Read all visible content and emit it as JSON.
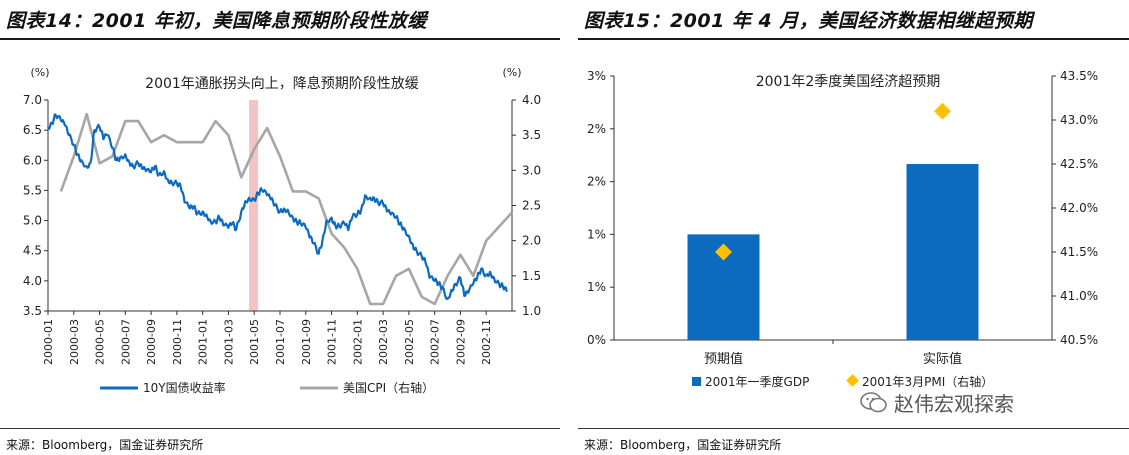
{
  "left": {
    "figure_title": "图表14：2001 年初，美国降息预期阶段性放缓",
    "source": "来源：Bloomberg，国金证券研究所"
  },
  "right": {
    "figure_title": "图表15：2001 年 4 月，美国经济数据相继超预期",
    "source": "来源：Bloomberg，国金证券研究所"
  },
  "watermark": "赵伟宏观探索",
  "colors": {
    "blue": "#0c6bbf",
    "gray": "#a6a6a6",
    "shade": "#f2c4c4",
    "diamond": "#ffc000"
  },
  "chart_data": [
    {
      "type": "line",
      "title": "2001年通胀拐头向上，降息预期阶段性放缓",
      "left_unit": "(%)",
      "right_unit": "(%)",
      "ylim_left": [
        3.5,
        7.0
      ],
      "ylim_right": [
        1.0,
        4.0
      ],
      "yticks_left": [
        "3.5",
        "4.0",
        "4.5",
        "5.0",
        "5.5",
        "6.0",
        "6.5",
        "7.0"
      ],
      "yticks_right": [
        "1.0",
        "1.5",
        "2.0",
        "2.5",
        "3.0",
        "3.5",
        "4.0"
      ],
      "x_tick_labels": [
        "2000-01",
        "2000-03",
        "2000-05",
        "2000-07",
        "2000-09",
        "2000-11",
        "2001-01",
        "2001-03",
        "2001-05",
        "2001-07",
        "2001-09",
        "2001-11",
        "2002-01",
        "2002-03",
        "2002-05",
        "2002-07",
        "2002-09",
        "2002-11"
      ],
      "highlight_range": [
        15.6,
        16.3
      ],
      "series": [
        {
          "name": "10Y国债收益率",
          "axis": "left",
          "x": [
            0,
            0.3,
            0.6,
            1.0,
            1.3,
            1.6,
            2.0,
            2.3,
            2.6,
            3.0,
            3.3,
            3.6,
            4.0,
            4.3,
            4.6,
            5.0,
            5.3,
            5.6,
            6.0,
            6.3,
            6.6,
            7.0,
            7.3,
            7.6,
            8.0,
            8.3,
            8.6,
            9.0,
            9.3,
            9.6,
            10.0,
            10.3,
            10.6,
            11.0,
            11.3,
            11.6,
            12.0,
            12.3,
            12.6,
            13.0,
            13.3,
            13.6,
            14.0,
            14.3,
            14.6,
            15.0,
            15.3,
            15.6,
            16.0,
            16.3,
            16.6,
            17.0,
            17.3,
            17.6,
            18.0,
            18.3,
            18.6,
            19.0,
            19.3,
            19.6,
            20.0,
            20.3,
            20.6,
            21.0,
            21.3,
            21.6,
            22.0,
            22.3,
            22.6,
            23.0,
            23.3,
            23.6,
            24.0,
            24.3,
            24.6,
            25.0,
            25.3,
            25.6,
            26.0,
            26.3,
            26.6,
            27.0,
            27.3,
            27.6,
            28.0,
            28.3,
            28.6,
            29.0,
            29.3,
            29.6,
            30.0,
            30.3,
            30.6,
            31.0,
            31.3,
            31.6,
            32.0,
            32.3,
            32.6,
            33.0,
            33.3,
            33.6,
            34.0,
            34.3,
            34.6,
            35.0,
            35.3,
            35.6
          ],
          "y": [
            6.55,
            6.62,
            6.75,
            6.66,
            6.58,
            6.42,
            6.25,
            6.1,
            6.0,
            5.9,
            5.96,
            6.5,
            6.55,
            6.35,
            6.42,
            6.2,
            6.0,
            6.05,
            6.1,
            5.98,
            5.9,
            5.95,
            5.86,
            5.82,
            5.8,
            5.9,
            5.76,
            5.82,
            5.68,
            5.64,
            5.62,
            5.55,
            5.3,
            5.2,
            5.22,
            5.12,
            5.15,
            5.1,
            5.0,
            4.98,
            5.05,
            4.92,
            4.88,
            4.95,
            4.85,
            5.15,
            5.32,
            5.38,
            5.35,
            5.45,
            5.5,
            5.42,
            5.35,
            5.25,
            5.15,
            5.2,
            5.18,
            5.05,
            4.98,
            4.95,
            4.88,
            4.72,
            4.62,
            4.45,
            4.68,
            5.0,
            5.05,
            4.92,
            4.9,
            4.95,
            4.84,
            5.05,
            5.1,
            5.18,
            5.42,
            5.38,
            5.38,
            5.3,
            5.28,
            5.15,
            5.1,
            5.05,
            4.95,
            4.88,
            4.75,
            4.6,
            4.5,
            4.4,
            4.3,
            4.05,
            4.0,
            3.95,
            3.9,
            3.7,
            3.85,
            3.95,
            4.05,
            3.75,
            3.8,
            3.95,
            4.05,
            4.2,
            4.1,
            4.15,
            4.05,
            3.95,
            3.9,
            3.82
          ]
        },
        {
          "name": "美国CPI（右轴）",
          "axis": "right",
          "x": [
            1,
            2,
            3,
            4,
            5,
            6,
            7,
            8,
            9,
            10,
            11,
            12,
            13,
            14,
            15,
            16,
            17,
            18,
            19,
            20,
            21,
            22,
            23,
            24,
            25,
            26,
            27,
            28,
            29,
            30,
            31,
            32,
            33,
            34,
            35,
            36
          ],
          "y": [
            2.7,
            3.2,
            3.8,
            3.1,
            3.2,
            3.7,
            3.7,
            3.4,
            3.5,
            3.4,
            3.4,
            3.4,
            3.7,
            3.5,
            2.9,
            3.3,
            3.6,
            3.2,
            2.7,
            2.7,
            2.6,
            2.1,
            1.9,
            1.6,
            1.1,
            1.1,
            1.5,
            1.6,
            1.2,
            1.1,
            1.5,
            1.8,
            1.5,
            2.0,
            2.2,
            2.4
          ]
        }
      ]
    },
    {
      "type": "bar",
      "title": "2001年2季度美国经济超预期",
      "categories": [
        "预期值",
        "实际值"
      ],
      "ylim_left": [
        0,
        3
      ],
      "ylim_right": [
        40.5,
        43.5
      ],
      "yticks_left": [
        "0%",
        "1%",
        "1%",
        "2%",
        "2%",
        "3%"
      ],
      "yticks_right": [
        "40.5%",
        "41.0%",
        "41.5%",
        "42.0%",
        "42.5%",
        "43.0%",
        "43.5%"
      ],
      "series": [
        {
          "name": "2001年一季度GDP",
          "axis": "left",
          "values": [
            1.2,
            2.0
          ]
        },
        {
          "name": "2001年3月PMI（右轴）",
          "axis": "right",
          "values": [
            41.5,
            43.1
          ]
        }
      ]
    }
  ]
}
